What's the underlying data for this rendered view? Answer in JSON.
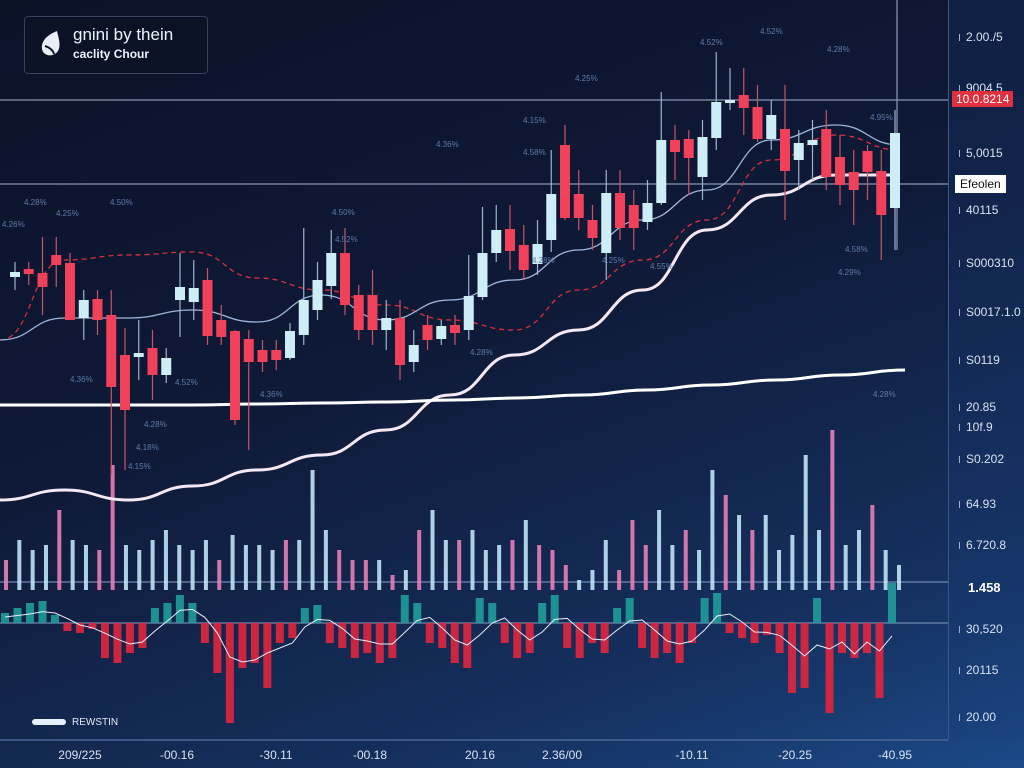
{
  "logo": {
    "line1": "gnini by thein",
    "line2": "caclity Chour"
  },
  "price_tags": {
    "current": "10.0.8214",
    "marker": "Efeolen"
  },
  "legend": {
    "label": "REWSTIN"
  },
  "right_axis": [
    "2.00./5",
    "9004.5",
    "5,0015",
    "40115",
    "S000310",
    "S0017.1.0",
    "S0119",
    "20.85",
    "10f.9",
    "S0.202",
    "64.93",
    "6.720.8",
    "1.458",
    "30,520",
    "20115",
    "20.00"
  ],
  "bottom_axis": [
    "209/225",
    "-00.16",
    "-30.11",
    "-00.18",
    "20.16",
    "2.36/00",
    "-10.11",
    "-20.25",
    "-40.95"
  ],
  "annotations": [
    "4.28%",
    "4.26%",
    "4.25%",
    "4.50%",
    "4.50%",
    "4.52%",
    "4.36%",
    "4.52%",
    "4.28%",
    "4.18%",
    "4.15%",
    "4.36%",
    "4.36%",
    "4.28%",
    "4.28%",
    "4.15%",
    "4.58%",
    "4.25%",
    "4.55%",
    "4.25%",
    "4.52%",
    "4.52%",
    "4.28%",
    "4.95%",
    "4.58%",
    "4.29%",
    "4.28%"
  ],
  "colors": {
    "up": "#cdeef6",
    "down": "#f0405a",
    "vol_up": "#bfe3f6",
    "vol_down": "#e77fb8",
    "macd_up": "#1f9c9a",
    "macd_down": "#e0263f",
    "ma_slow": "#ffffff",
    "ma_fast": "#9fb7dc",
    "ma_dashed": "#d8303f"
  },
  "chart_data": {
    "type": "candlestick",
    "title": "",
    "ylim": [
      -50,
      250
    ],
    "candles": [
      {
        "o": 111.5,
        "c": 114,
        "h": 119,
        "l": 105
      },
      {
        "o": 115.5,
        "c": 113,
        "h": 119,
        "l": 107.5
      },
      {
        "o": 113.5,
        "c": 106.5,
        "h": 131.5,
        "l": 92.5
      },
      {
        "o": 122.5,
        "c": 117.5,
        "h": 131.5,
        "l": 106.5
      },
      {
        "o": 118.5,
        "c": 90,
        "h": 123.5,
        "l": 90
      },
      {
        "o": 91,
        "c": 100,
        "h": 105,
        "l": 80
      },
      {
        "o": 100.5,
        "c": 90,
        "h": 105,
        "l": 82.5
      },
      {
        "o": 92.5,
        "c": 56.5,
        "h": 105,
        "l": 12.5
      },
      {
        "o": 72.5,
        "c": 45,
        "h": 86,
        "l": 15
      },
      {
        "o": 71.5,
        "c": 73.5,
        "h": 90,
        "l": 60
      },
      {
        "o": 76,
        "c": 62.5,
        "h": 85,
        "l": 50
      },
      {
        "o": 62.5,
        "c": 71,
        "h": 76,
        "l": 58.5
      },
      {
        "o": 100,
        "c": 106.5,
        "h": 123.5,
        "l": 81.5
      },
      {
        "o": 99,
        "c": 106,
        "h": 120,
        "l": 90
      },
      {
        "o": 110,
        "c": 82,
        "h": 116,
        "l": 77.5
      },
      {
        "o": 90,
        "c": 81.5,
        "h": 97.5,
        "l": 77.5
      },
      {
        "o": 84.5,
        "c": 40,
        "h": 85,
        "l": 37.5
      },
      {
        "o": 80.5,
        "c": 69,
        "h": 85,
        "l": 25
      },
      {
        "o": 75,
        "c": 69,
        "h": 80,
        "l": 64
      },
      {
        "o": 75,
        "c": 70,
        "h": 80,
        "l": 65
      },
      {
        "o": 71,
        "c": 84.5,
        "h": 88.5,
        "l": 70
      },
      {
        "o": 82.5,
        "c": 100,
        "h": 136,
        "l": 77.5
      },
      {
        "o": 95,
        "c": 110,
        "h": 119,
        "l": 90
      },
      {
        "o": 107,
        "c": 123.5,
        "h": 135,
        "l": 100.5
      },
      {
        "o": 123.5,
        "c": 97.5,
        "h": 136,
        "l": 92.5
      },
      {
        "o": 102.5,
        "c": 85,
        "h": 107.5,
        "l": 80
      },
      {
        "o": 102.5,
        "c": 85,
        "h": 115,
        "l": 77.5
      },
      {
        "o": 85,
        "c": 91,
        "h": 100,
        "l": 75
      },
      {
        "o": 91,
        "c": 67.5,
        "h": 100,
        "l": 60
      },
      {
        "o": 69,
        "c": 77.5,
        "h": 85,
        "l": 64
      },
      {
        "o": 87.5,
        "c": 80,
        "h": 92.5,
        "l": 75
      },
      {
        "o": 80.5,
        "c": 87,
        "h": 90,
        "l": 77.5
      },
      {
        "o": 87.5,
        "c": 83.5,
        "h": 92.5,
        "l": 77.5
      },
      {
        "o": 85,
        "c": 102,
        "h": 122.5,
        "l": 80
      },
      {
        "o": 101.5,
        "c": 123.5,
        "h": 146.5,
        "l": 100
      },
      {
        "o": 123.5,
        "c": 135,
        "h": 147.5,
        "l": 119
      },
      {
        "o": 135.5,
        "c": 124.5,
        "h": 147.5,
        "l": 115
      },
      {
        "o": 127.5,
        "c": 115,
        "h": 137.5,
        "l": 110
      },
      {
        "o": 118,
        "c": 128,
        "h": 140,
        "l": 112.5
      },
      {
        "o": 130,
        "c": 153,
        "h": 175,
        "l": 124
      },
      {
        "o": 177.5,
        "c": 141,
        "h": 187.5,
        "l": 140
      },
      {
        "o": 153,
        "c": 141,
        "h": 165,
        "l": 135
      },
      {
        "o": 140,
        "c": 131,
        "h": 147.5,
        "l": 125
      },
      {
        "o": 123.5,
        "c": 153.5,
        "h": 165,
        "l": 110
      },
      {
        "o": 153.5,
        "c": 136,
        "h": 165,
        "l": 130
      },
      {
        "o": 147.5,
        "c": 136,
        "h": 155,
        "l": 125
      },
      {
        "o": 139,
        "c": 148.5,
        "h": 160,
        "l": 135
      },
      {
        "o": 148.5,
        "c": 180,
        "h": 204,
        "l": 147.5
      },
      {
        "o": 180,
        "c": 174,
        "h": 187.5,
        "l": 160
      },
      {
        "o": 180.5,
        "c": 171,
        "h": 185,
        "l": 152.5
      },
      {
        "o": 161.5,
        "c": 181.5,
        "h": 190,
        "l": 150
      },
      {
        "o": 181,
        "c": 199,
        "h": 224,
        "l": 175
      },
      {
        "o": 198.5,
        "c": 200,
        "h": 216,
        "l": 195
      },
      {
        "o": 202.5,
        "c": 196,
        "h": 216,
        "l": 182.5
      },
      {
        "o": 196.5,
        "c": 180.5,
        "h": 207.5,
        "l": 179
      },
      {
        "o": 180.5,
        "c": 192.5,
        "h": 200,
        "l": 175
      },
      {
        "o": 185.5,
        "c": 164.5,
        "h": 207.5,
        "l": 140
      },
      {
        "o": 170,
        "c": 178.5,
        "h": 185,
        "l": 155
      },
      {
        "o": 177.5,
        "c": 180,
        "h": 190,
        "l": 160
      },
      {
        "o": 185.5,
        "c": 161.5,
        "h": 195,
        "l": 155
      },
      {
        "o": 171.5,
        "c": 157.5,
        "h": 182.5,
        "l": 147.5
      },
      {
        "o": 164,
        "c": 155,
        "h": 175,
        "l": 137.5
      },
      {
        "o": 174.5,
        "c": 164,
        "h": 177.5,
        "l": 150
      },
      {
        "o": 164.5,
        "c": 142.5,
        "h": 175,
        "l": 120
      },
      {
        "o": 146,
        "c": 183.5,
        "h": 195,
        "l": 125
      }
    ],
    "ma_slow": [
      47.5,
      47.5,
      47.5,
      47.5,
      48,
      48.5,
      49,
      50,
      51,
      52.5,
      55,
      57.5,
      60,
      62.5,
      65
    ],
    "ma_rising": [
      0,
      5,
      0,
      7,
      15,
      22.5,
      35,
      52.5,
      72.5,
      85,
      105,
      135,
      152.5,
      162.5,
      162.5
    ],
    "ma_fast": [
      80,
      91,
      91,
      95,
      89,
      102.5,
      90,
      100,
      110,
      125,
      140,
      155,
      180,
      187.5,
      177.5
    ],
    "ma_dashed": [
      80,
      120,
      122.5,
      124,
      111,
      105,
      97.5,
      90,
      85,
      105,
      120,
      140,
      170,
      182.5,
      175
    ],
    "volume": [
      {
        "v": 30,
        "d": 1
      },
      {
        "v": 50,
        "d": 0
      },
      {
        "v": 40,
        "d": 0
      },
      {
        "v": 45,
        "d": 0
      },
      {
        "v": 80,
        "d": 1
      },
      {
        "v": 50,
        "d": 0
      },
      {
        "v": 45,
        "d": 0
      },
      {
        "v": 40,
        "d": 1
      },
      {
        "v": 125,
        "d": 1
      },
      {
        "v": 45,
        "d": 0
      },
      {
        "v": 40,
        "d": 0
      },
      {
        "v": 50,
        "d": 0
      },
      {
        "v": 60,
        "d": 0
      },
      {
        "v": 45,
        "d": 0
      },
      {
        "v": 40,
        "d": 0
      },
      {
        "v": 50,
        "d": 0
      },
      {
        "v": 30,
        "d": 1
      },
      {
        "v": 55,
        "d": 0
      },
      {
        "v": 45,
        "d": 0
      },
      {
        "v": 45,
        "d": 0
      },
      {
        "v": 40,
        "d": 0
      },
      {
        "v": 50,
        "d": 1
      },
      {
        "v": 50,
        "d": 0
      },
      {
        "v": 120,
        "d": 0
      },
      {
        "v": 60,
        "d": 0
      },
      {
        "v": 40,
        "d": 1
      },
      {
        "v": 30,
        "d": 1
      },
      {
        "v": 30,
        "d": 1
      },
      {
        "v": 30,
        "d": 0
      },
      {
        "v": 15,
        "d": 1
      },
      {
        "v": 20,
        "d": 0
      },
      {
        "v": 60,
        "d": 1
      },
      {
        "v": 80,
        "d": 0
      },
      {
        "v": 50,
        "d": 0
      },
      {
        "v": 50,
        "d": 1
      },
      {
        "v": 60,
        "d": 0
      },
      {
        "v": 40,
        "d": 0
      },
      {
        "v": 45,
        "d": 0
      },
      {
        "v": 50,
        "d": 1
      },
      {
        "v": 70,
        "d": 0
      },
      {
        "v": 45,
        "d": 1
      },
      {
        "v": 40,
        "d": 1
      },
      {
        "v": 25,
        "d": 1
      },
      {
        "v": 10,
        "d": 0
      },
      {
        "v": 20,
        "d": 0
      },
      {
        "v": 50,
        "d": 0
      },
      {
        "v": 20,
        "d": 1
      },
      {
        "v": 70,
        "d": 1
      },
      {
        "v": 45,
        "d": 1
      },
      {
        "v": 80,
        "d": 0
      },
      {
        "v": 45,
        "d": 0
      },
      {
        "v": 60,
        "d": 1
      },
      {
        "v": 40,
        "d": 0
      },
      {
        "v": 120,
        "d": 0
      },
      {
        "v": 95,
        "d": 1
      },
      {
        "v": 75,
        "d": 0
      },
      {
        "v": 60,
        "d": 1
      },
      {
        "v": 75,
        "d": 0
      },
      {
        "v": 40,
        "d": 0
      },
      {
        "v": 55,
        "d": 0
      },
      {
        "v": 135,
        "d": 0
      },
      {
        "v": 60,
        "d": 0
      },
      {
        "v": 160,
        "d": 1
      },
      {
        "v": 45,
        "d": 0
      },
      {
        "v": 60,
        "d": 0
      },
      {
        "v": 85,
        "d": 1
      },
      {
        "v": 40,
        "d": 0
      },
      {
        "v": 25,
        "d": 0
      }
    ],
    "macd_hist": [
      10,
      15,
      20,
      22,
      8,
      -8,
      -10,
      -6,
      -35,
      -40,
      -30,
      -25,
      15,
      20,
      28,
      20,
      -20,
      -50,
      -100,
      -45,
      -40,
      -65,
      -20,
      -15,
      15,
      18,
      -20,
      -25,
      -35,
      -30,
      -40,
      -35,
      28,
      20,
      -20,
      -25,
      -40,
      -45,
      25,
      20,
      -20,
      -35,
      -30,
      20,
      28,
      -25,
      -35,
      -20,
      -30,
      15,
      25,
      -25,
      -35,
      -30,
      -40,
      -20,
      25,
      30,
      -10,
      -15,
      -20,
      -12,
      -30,
      -70,
      -65,
      25,
      -90,
      -30,
      -35,
      -30,
      -75,
      40
    ]
  }
}
